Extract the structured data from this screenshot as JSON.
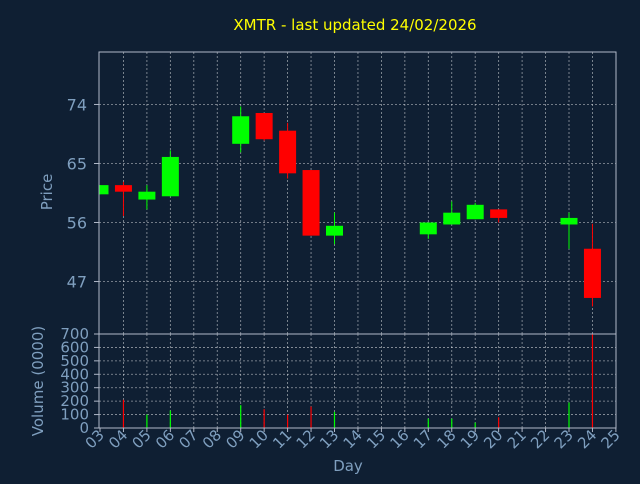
{
  "colors": {
    "background": "#0f1f33",
    "title": "#ffff00",
    "axis_text": "#7f9fbf",
    "frame": "#b0b8c8",
    "grid": "#ffffff",
    "up": "#00ff00",
    "down": "#ff0000"
  },
  "chart_data": [
    {
      "type": "candlestick",
      "title": "XMTR - last updated 24/02/2026",
      "xlabel": "",
      "ylabel": "Price",
      "ylim": [
        39,
        82
      ],
      "yticks": [
        47,
        56,
        65,
        74
      ],
      "grid": true,
      "x_ticks": [
        "03",
        "04",
        "05",
        "06",
        "07",
        "08",
        "09",
        "10",
        "11",
        "12",
        "13",
        "14",
        "15",
        "16",
        "17",
        "18",
        "19",
        "20",
        "21",
        "22",
        "23",
        "24",
        "25"
      ],
      "candles": [
        {
          "day": "03",
          "open": 60.3,
          "high": 61.7,
          "low": 60.3,
          "close": 61.7
        },
        {
          "day": "04",
          "open": 61.7,
          "high": 62.2,
          "low": 57.0,
          "close": 60.7
        },
        {
          "day": "05",
          "open": 59.5,
          "high": 61.7,
          "low": 58.0,
          "close": 60.7
        },
        {
          "day": "06",
          "open": 60.0,
          "high": 67.0,
          "low": 60.0,
          "close": 66.0
        },
        {
          "day": "09",
          "open": 68.0,
          "high": 73.7,
          "low": 66.7,
          "close": 72.2
        },
        {
          "day": "10",
          "open": 72.7,
          "high": 72.7,
          "low": 68.5,
          "close": 68.7
        },
        {
          "day": "11",
          "open": 70.0,
          "high": 71.2,
          "low": 62.7,
          "close": 63.5
        },
        {
          "day": "12",
          "open": 64.0,
          "high": 64.0,
          "low": 54.0,
          "close": 54.0
        },
        {
          "day": "13",
          "open": 54.0,
          "high": 57.5,
          "low": 52.7,
          "close": 55.5
        },
        {
          "day": "17",
          "open": 54.2,
          "high": 56.0,
          "low": 53.5,
          "close": 56.0
        },
        {
          "day": "18",
          "open": 55.7,
          "high": 59.2,
          "low": 55.7,
          "close": 57.5
        },
        {
          "day": "19",
          "open": 56.5,
          "high": 59.0,
          "low": 56.5,
          "close": 58.7
        },
        {
          "day": "20",
          "open": 58.0,
          "high": 58.0,
          "low": 56.0,
          "close": 56.7
        },
        {
          "day": "23",
          "open": 55.7,
          "high": 57.5,
          "low": 52.0,
          "close": 56.7
        },
        {
          "day": "24",
          "open": 52.0,
          "high": 55.8,
          "low": 43.2,
          "close": 44.5
        }
      ]
    },
    {
      "type": "bar",
      "title": "",
      "xlabel": "Day",
      "ylabel": "Volume (0000)",
      "ylim": [
        0,
        700
      ],
      "yticks": [
        0,
        100,
        200,
        300,
        400,
        500,
        600,
        700
      ],
      "grid": true,
      "x_ticks": [
        "03",
        "04",
        "05",
        "06",
        "07",
        "08",
        "09",
        "10",
        "11",
        "12",
        "13",
        "14",
        "15",
        "16",
        "17",
        "18",
        "19",
        "20",
        "21",
        "22",
        "23",
        "24",
        "25"
      ],
      "bars": [
        {
          "day": "03",
          "value": 0,
          "direction": "up"
        },
        {
          "day": "04",
          "value": 210,
          "direction": "down"
        },
        {
          "day": "05",
          "value": 100,
          "direction": "up"
        },
        {
          "day": "06",
          "value": 130,
          "direction": "up"
        },
        {
          "day": "09",
          "value": 170,
          "direction": "up"
        },
        {
          "day": "10",
          "value": 140,
          "direction": "down"
        },
        {
          "day": "11",
          "value": 100,
          "direction": "down"
        },
        {
          "day": "12",
          "value": 160,
          "direction": "down"
        },
        {
          "day": "13",
          "value": 120,
          "direction": "up"
        },
        {
          "day": "17",
          "value": 70,
          "direction": "up"
        },
        {
          "day": "18",
          "value": 70,
          "direction": "up"
        },
        {
          "day": "19",
          "value": 40,
          "direction": "up"
        },
        {
          "day": "20",
          "value": 80,
          "direction": "down"
        },
        {
          "day": "23",
          "value": 190,
          "direction": "up"
        },
        {
          "day": "24",
          "value": 700,
          "direction": "down"
        }
      ]
    }
  ]
}
